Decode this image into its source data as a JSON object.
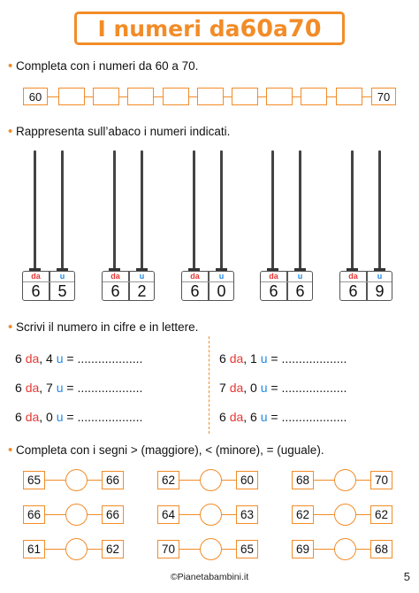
{
  "title": {
    "prefix": "I numeri da ",
    "from": "60",
    "mid": " a ",
    "to": "70"
  },
  "section1": {
    "instruction": "Completa con i numeri da 60 a 70.",
    "boxes": [
      "60",
      "",
      "",
      "",
      "",
      "",
      "",
      "",
      "",
      "",
      "70"
    ]
  },
  "section2": {
    "instruction": "Rappresenta sull’abaco i numeri indicati.",
    "label_tens": "da",
    "label_units": "u",
    "abaci": [
      {
        "tens": "6",
        "units": "5"
      },
      {
        "tens": "6",
        "units": "2"
      },
      {
        "tens": "6",
        "units": "0"
      },
      {
        "tens": "6",
        "units": "6"
      },
      {
        "tens": "6",
        "units": "9"
      }
    ]
  },
  "section3": {
    "instruction": "Scrivi il numero in cifre e in lettere.",
    "answer_dots": " = ...................",
    "left": [
      {
        "tens": "6",
        "units": "4"
      },
      {
        "tens": "6",
        "units": "7"
      },
      {
        "tens": "6",
        "units": "0"
      }
    ],
    "right": [
      {
        "tens": "6",
        "units": "1"
      },
      {
        "tens": "7",
        "units": "0"
      },
      {
        "tens": "6",
        "units": "6"
      }
    ]
  },
  "section4": {
    "instruction": "Completa con i segni > (maggiore), < (minore), = (uguale).",
    "pairs": [
      {
        "a": "65",
        "b": "66"
      },
      {
        "a": "62",
        "b": "60"
      },
      {
        "a": "68",
        "b": "70"
      },
      {
        "a": "66",
        "b": "66"
      },
      {
        "a": "64",
        "b": "63"
      },
      {
        "a": "62",
        "b": "62"
      },
      {
        "a": "61",
        "b": "62"
      },
      {
        "a": "70",
        "b": "65"
      },
      {
        "a": "69",
        "b": "68"
      }
    ]
  },
  "footer": {
    "site": "©Pianetabambini.it",
    "page": "5"
  },
  "colors": {
    "accent": "#f28c28",
    "tens": "#e53935",
    "units": "#1e88e5"
  }
}
